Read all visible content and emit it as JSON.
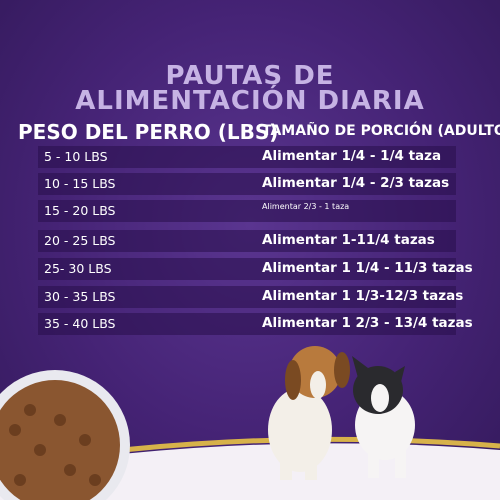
{
  "title": "PAUTAS DE ALIMENTACIÓN DIARIA",
  "table": {
    "headers": [
      "PESO DEL PERRO (LBS)",
      "TAMAÑO DE PORCIÓN (ADULTO)"
    ],
    "rows": [
      [
        "5 - 10 LBS",
        "Alimentar 1/4 - 1/4 taza"
      ],
      [
        "10 - 15 LBS",
        "Alimentar 1/4 - 2/3 tazas"
      ],
      [
        "15 - 20 LBS",
        "Alimentar 2/3 - 1 taza"
      ],
      [
        "20 - 25 LBS",
        "Alimentar 1-11/4 tazas"
      ],
      [
        "25- 30 LBS",
        "Alimentar 1 1/4 - 11/3 tazas"
      ],
      [
        "30 - 35 LBS",
        "Alimentar 1 1/3-12/3 tazas"
      ],
      [
        "35 - 40 LBS",
        "Alimentar 1 2/3 - 13/4 tazas"
      ]
    ]
  }
}
